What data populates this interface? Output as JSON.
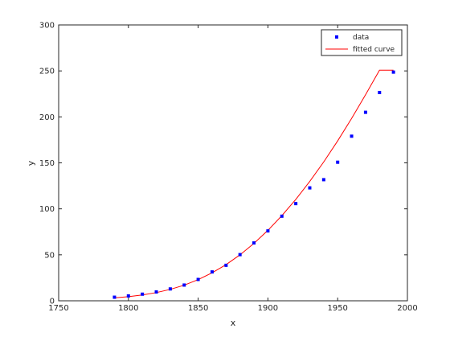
{
  "chart_data": {
    "type": "scatter",
    "title": "",
    "xlabel": "x",
    "ylabel": "y",
    "xlim": [
      1750,
      2000
    ],
    "ylim": [
      0,
      300
    ],
    "xticks": [
      1750,
      1800,
      1850,
      1900,
      1950,
      2000
    ],
    "yticks": [
      0,
      50,
      100,
      150,
      200,
      250,
      300
    ],
    "grid": false,
    "legend_position": "top-right",
    "series": [
      {
        "name": "data",
        "kind": "points",
        "color": "#0000ff",
        "x": [
          1790,
          1800,
          1810,
          1820,
          1830,
          1840,
          1850,
          1860,
          1870,
          1880,
          1890,
          1900,
          1910,
          1920,
          1930,
          1940,
          1950,
          1960,
          1970,
          1980,
          1990
        ],
        "y": [
          3.9,
          5.3,
          7.2,
          9.6,
          12.9,
          17.1,
          23.2,
          31.4,
          38.6,
          50.2,
          62.9,
          76.0,
          92.0,
          105.7,
          122.8,
          131.7,
          150.7,
          179.0,
          205.0,
          226.5,
          248.7
        ]
      },
      {
        "name": "fitted curve",
        "kind": "line",
        "color": "#ff0000",
        "x": [
          1790,
          1800,
          1810,
          1820,
          1830,
          1840,
          1850,
          1860,
          1870,
          1880,
          1890,
          1900,
          1910,
          1920,
          1930,
          1940,
          1950,
          1960,
          1970,
          1980,
          1990
        ],
        "y": [
          3.2,
          4.5,
          6.3,
          8.9,
          12.4,
          17.0,
          23.0,
          30.4,
          39.3,
          50.0,
          62.4,
          76.6,
          92.6,
          110.3,
          129.8,
          151.0,
          173.9,
          198.3,
          224.1,
          250.8,
          250.8
        ]
      }
    ]
  }
}
